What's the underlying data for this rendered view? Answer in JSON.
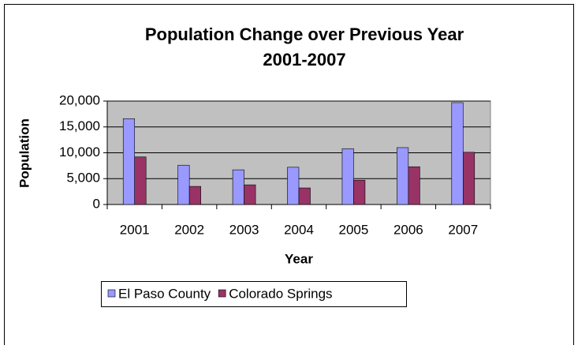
{
  "chart_data": {
    "type": "bar",
    "title": [
      "Population Change over Previous Year",
      "2001-2007"
    ],
    "xlabel": "Year",
    "ylabel": "Population",
    "categories": [
      "2001",
      "2002",
      "2003",
      "2004",
      "2005",
      "2006",
      "2007"
    ],
    "series": [
      {
        "name": "El Paso County",
        "color": "#9999ff",
        "values": [
          16600,
          7600,
          6700,
          7200,
          10800,
          11000,
          19700
        ]
      },
      {
        "name": "Colorado Springs",
        "color": "#993366",
        "values": [
          9200,
          3500,
          3800,
          3200,
          4700,
          7300,
          10100
        ]
      }
    ],
    "ylim": [
      0,
      20000
    ],
    "yticks": [
      0,
      {
        "value": 5000,
        "label": "5,000"
      },
      {
        "value": 10000,
        "label": "10,000"
      },
      {
        "value": 15000,
        "label": "15,000"
      },
      {
        "value": 20000,
        "label": "20,000"
      }
    ],
    "grid": true,
    "legend": "bottom"
  }
}
